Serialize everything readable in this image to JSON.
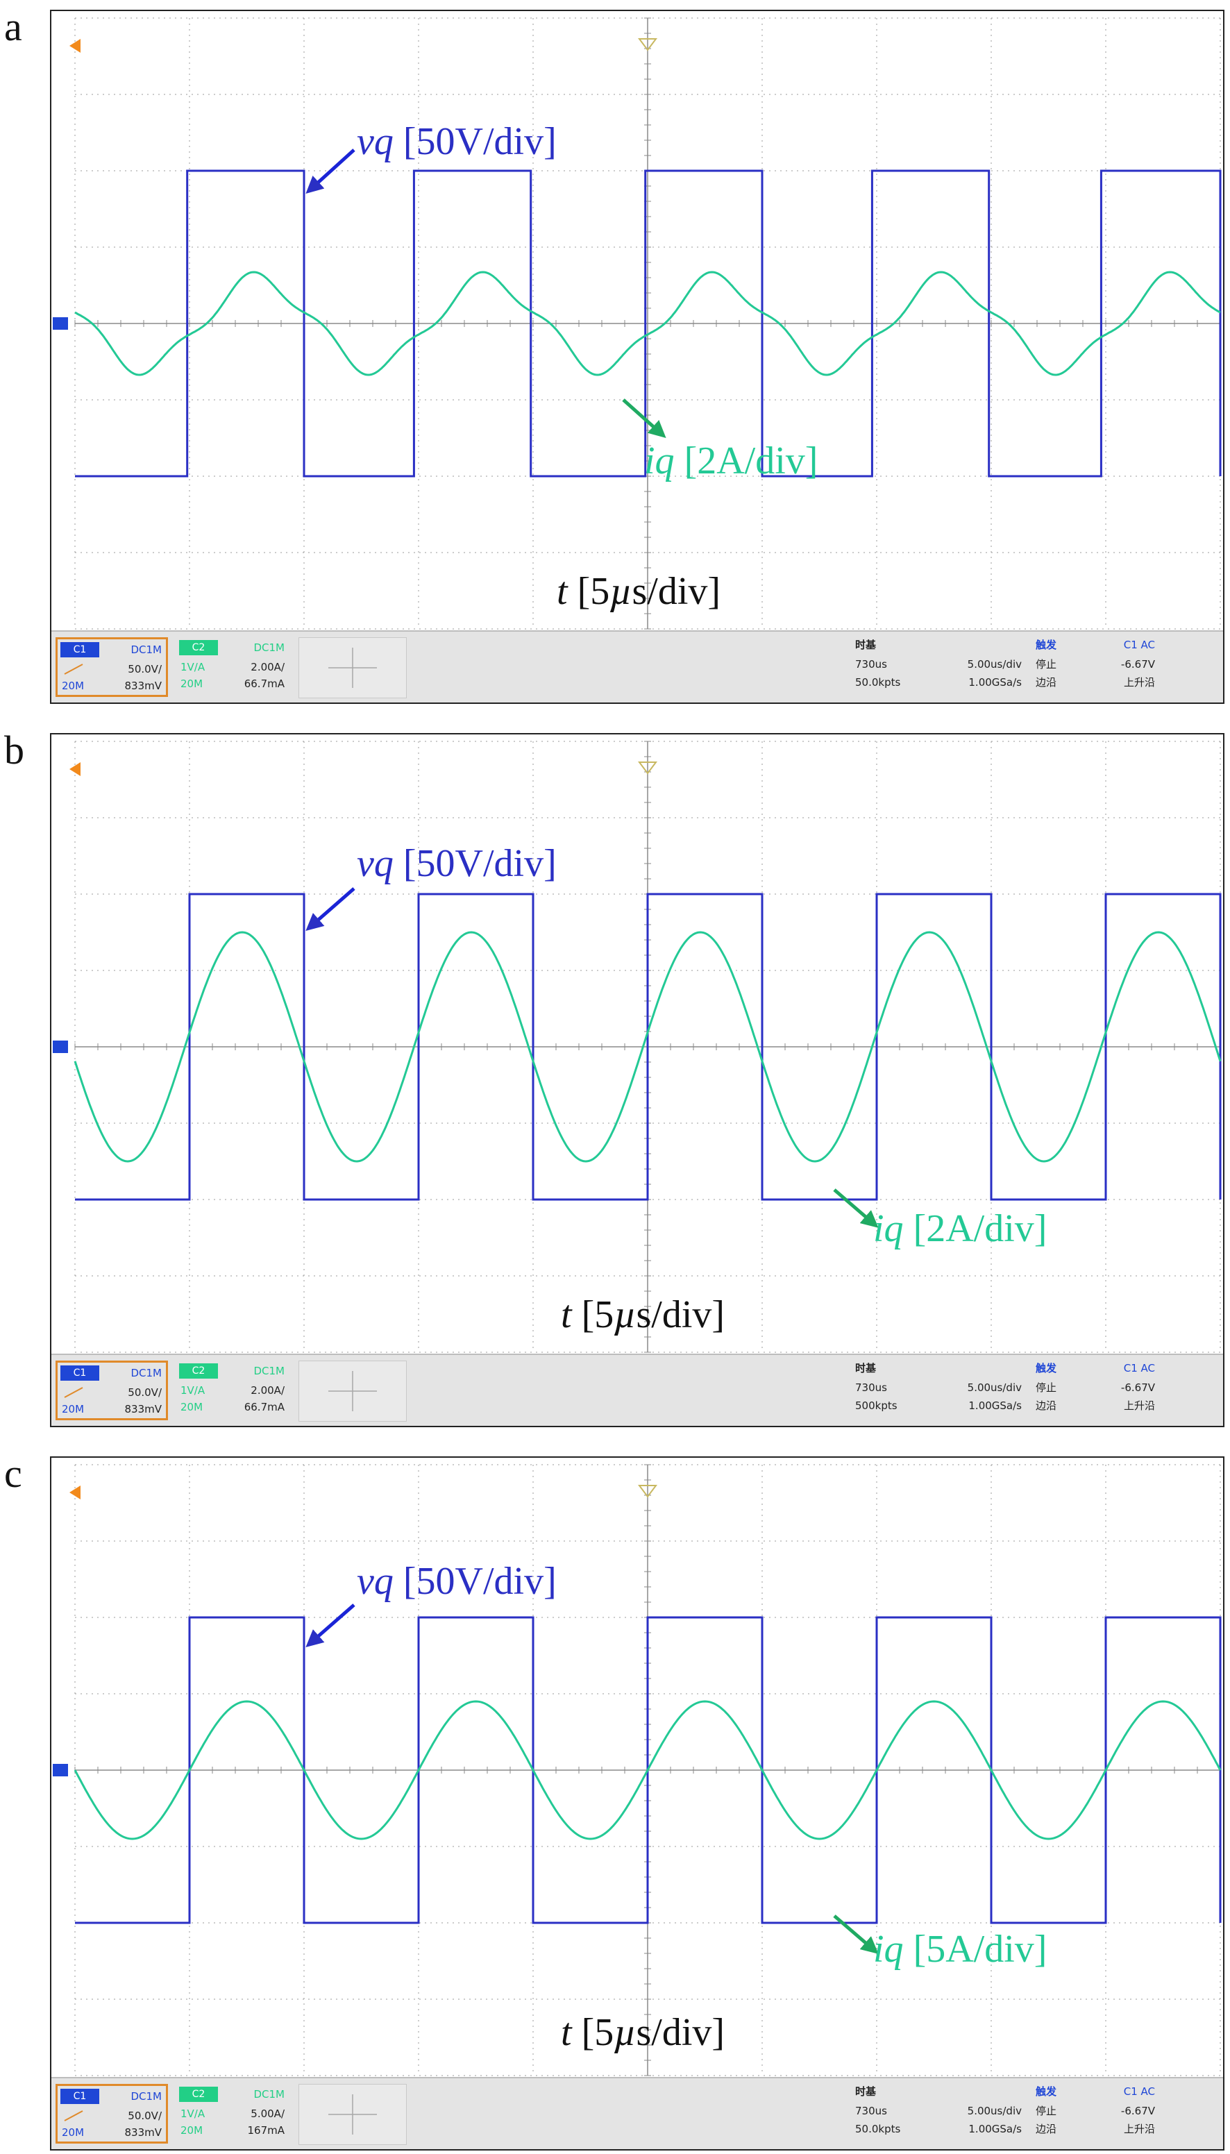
{
  "colors": {
    "voltage": "#2a2fc4",
    "current": "#23c995",
    "grid": "#9a9a9a",
    "ch1_badge": "#1f46d6",
    "ch2_badge": "#22cf86",
    "marker": "#f28a1c"
  },
  "axis_labels": {
    "voltage": "[50V/div]",
    "current": "[2A/div]",
    "time": "[5µs/div]"
  },
  "panels": [
    {
      "letter": "a",
      "vq_symbol": "vq",
      "vq_scale": "[50V/div]",
      "iq_symbol": "iq",
      "iq_scale": "[2A/div]",
      "t_symbol": "t",
      "t_scale": "[5",
      "t_mu": "µ",
      "t_tail": "s/div]",
      "status": {
        "ch1_badge": "C1",
        "ch1_coupling": "DC1M",
        "ch1_scale": "50.0V/",
        "ch1_bw": "20M",
        "ch1_offset": "833mV",
        "ch2_badge": "C2",
        "ch2_coupling": "DC1M",
        "ch2_probe": "1V/A",
        "ch2_scale": "2.00A/",
        "ch2_bw": "20M",
        "ch2_offset": "66.7mA",
        "tb_label": "时基",
        "tb_delay": "730us",
        "tb_div": "5.00us/div",
        "tb_pts": "50.0kpts",
        "tb_rate": "1.00GSa/s",
        "trg_label": "触发",
        "trg_src": "C1 AC",
        "trg_state": "停止",
        "trg_level": "-6.67V",
        "trg_edge_label": "边沿",
        "trg_edge": "上升沿"
      }
    },
    {
      "letter": "b",
      "vq_symbol": "vq",
      "vq_scale": "[50V/div]",
      "iq_symbol": "iq",
      "iq_scale": "[2A/div]",
      "t_symbol": "t",
      "t_scale": "[5",
      "t_mu": "µ",
      "t_tail": "s/div]",
      "status": {
        "ch1_badge": "C1",
        "ch1_coupling": "DC1M",
        "ch1_scale": "50.0V/",
        "ch1_bw": "20M",
        "ch1_offset": "833mV",
        "ch2_badge": "C2",
        "ch2_coupling": "DC1M",
        "ch2_probe": "1V/A",
        "ch2_scale": "2.00A/",
        "ch2_bw": "20M",
        "ch2_offset": "66.7mA",
        "tb_label": "时基",
        "tb_delay": "730us",
        "tb_div": "5.00us/div",
        "tb_pts": "500kpts",
        "tb_rate": "1.00GSa/s",
        "trg_label": "触发",
        "trg_src": "C1 AC",
        "trg_state": "停止",
        "trg_level": "-6.67V",
        "trg_edge_label": "边沿",
        "trg_edge": "上升沿"
      }
    },
    {
      "letter": "c",
      "vq_symbol": "vq",
      "vq_scale": "[50V/div]",
      "iq_symbol": "iq",
      "iq_scale": "[5A/div]",
      "t_symbol": "t",
      "t_scale": "[5",
      "t_mu": "µ",
      "t_tail": "s/div]",
      "status": {
        "ch1_badge": "C1",
        "ch1_coupling": "DC1M",
        "ch1_scale": "50.0V/",
        "ch1_bw": "20M",
        "ch1_offset": "833mV",
        "ch2_badge": "C2",
        "ch2_coupling": "DC1M",
        "ch2_probe": "1V/A",
        "ch2_scale": "5.00A/",
        "ch2_bw": "20M",
        "ch2_offset": "167mA",
        "tb_label": "时基",
        "tb_delay": "730us",
        "tb_div": "5.00us/div",
        "tb_pts": "50.0kpts",
        "tb_rate": "1.00GSa/s",
        "trg_label": "触发",
        "trg_src": "C1 AC",
        "trg_state": "停止",
        "trg_level": "-6.67V",
        "trg_edge_label": "边沿",
        "trg_edge": "上升沿"
      }
    }
  ],
  "chart_data": [
    {
      "type": "line",
      "x_unit": "µs",
      "x_range": [
        0,
        50
      ],
      "y_range_div": [
        -4,
        4
      ],
      "grid": true,
      "series": [
        {
          "name": "vq",
          "waveform": "square",
          "amplitude_div": 2.0,
          "period_us": 10.0,
          "high_intervals_us": [
            [
              4.9,
              10.0
            ],
            [
              14.8,
              19.9
            ],
            [
              24.9,
              30.0
            ],
            [
              34.8,
              39.9
            ],
            [
              44.8,
              50.0
            ]
          ]
        },
        {
          "name": "iq",
          "waveform": "distorted-sine",
          "amplitude_div": 0.68,
          "period_us": 10.0,
          "peak_times_us": [
            8.0,
            18.0,
            28.0,
            38.0,
            48.0
          ]
        }
      ]
    },
    {
      "type": "line",
      "x_unit": "µs",
      "x_range": [
        0,
        50
      ],
      "y_range_div": [
        -4,
        4
      ],
      "grid": true,
      "series": [
        {
          "name": "vq",
          "waveform": "square",
          "amplitude_div": 2.0,
          "period_us": 10.0,
          "high_intervals_us": [
            [
              5.0,
              10.0
            ],
            [
              15.0,
              20.0
            ],
            [
              25.0,
              30.0
            ],
            [
              35.0,
              40.0
            ],
            [
              45.0,
              50.0
            ]
          ]
        },
        {
          "name": "iq",
          "waveform": "sine",
          "amplitude_div": 1.5,
          "period_us": 10.0,
          "peak_times_us": [
            7.3,
            17.3,
            27.3,
            37.3,
            47.3
          ]
        }
      ]
    },
    {
      "type": "line",
      "x_unit": "µs",
      "x_range": [
        0,
        50
      ],
      "y_range_div": [
        -4,
        4
      ],
      "grid": true,
      "series": [
        {
          "name": "vq",
          "waveform": "square",
          "amplitude_div": 2.0,
          "period_us": 10.0,
          "high_intervals_us": [
            [
              5.0,
              10.0
            ],
            [
              15.0,
              20.0
            ],
            [
              25.0,
              30.0
            ],
            [
              35.0,
              40.0
            ],
            [
              45.0,
              50.0
            ]
          ]
        },
        {
          "name": "iq",
          "waveform": "sine",
          "amplitude_div": 0.9,
          "period_us": 10.0,
          "peak_times_us": [
            7.5,
            17.5,
            27.5,
            37.5,
            47.5
          ]
        }
      ]
    }
  ]
}
